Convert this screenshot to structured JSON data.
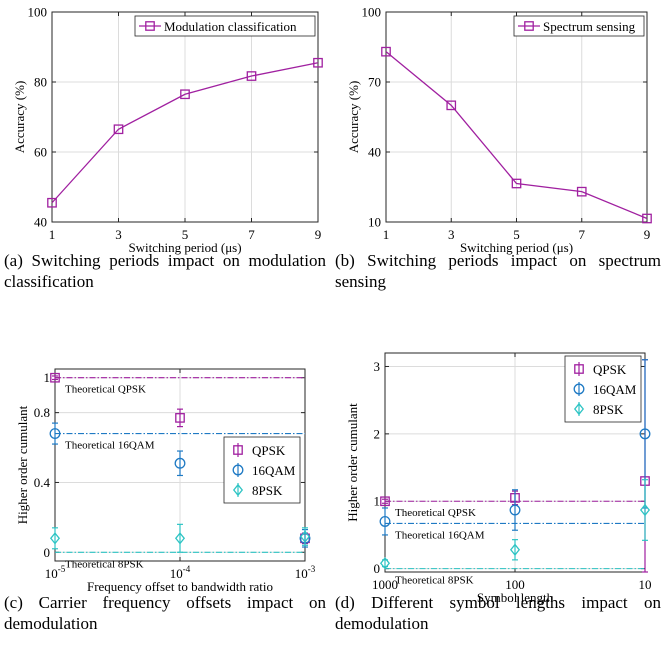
{
  "chart_data": [
    {
      "id": "a",
      "type": "line",
      "caption": "(a) Switching periods impact on modulation classification",
      "xlabel": "Switching period (μs)",
      "ylabel": "Accuracy (%)",
      "x_ticks": [
        "1",
        "3",
        "5",
        "7",
        "9"
      ],
      "y_ticks": [
        "40",
        "60",
        "80",
        "100"
      ],
      "xlim": [
        1,
        9
      ],
      "ylim": [
        40,
        100
      ],
      "grid": true,
      "legend_position": "top-right",
      "series": [
        {
          "name": "Modulation  classification",
          "color": "#a020a0",
          "marker": "square",
          "x": [
            1,
            3,
            5,
            7,
            9
          ],
          "y": [
            45.5,
            66.5,
            76.5,
            81.7,
            85.5
          ]
        }
      ]
    },
    {
      "id": "b",
      "type": "line",
      "caption": "(b) Switching periods impact on spectrum sensing",
      "xlabel": "Switching period (μs)",
      "ylabel": "Accuracy (%)",
      "x_ticks": [
        "1",
        "3",
        "5",
        "7",
        "9"
      ],
      "y_ticks": [
        "10",
        "40",
        "70",
        "100"
      ],
      "xlim": [
        1,
        9
      ],
      "ylim": [
        10,
        100
      ],
      "grid": true,
      "legend_position": "top-right",
      "series": [
        {
          "name": "Spectrum sensing",
          "color": "#a020a0",
          "marker": "square",
          "x": [
            1,
            3,
            5,
            7,
            9
          ],
          "y": [
            83,
            60,
            26.5,
            23,
            11.5
          ]
        }
      ]
    },
    {
      "id": "c",
      "type": "scatter",
      "caption": "(c) Carrier frequency offsets impact on demodulation",
      "xlabel": "Frequency offset to bandwidth ratio",
      "ylabel": "Higher order cumulant",
      "x_ticks": [
        {
          "base": "10",
          "exp": "-5"
        },
        {
          "base": "10",
          "exp": "-4"
        },
        {
          "base": "10",
          "exp": "-3"
        }
      ],
      "y_ticks": [
        "0",
        "0.4",
        "0.8",
        "1"
      ],
      "x_scale": "log",
      "xlim": [
        1e-05,
        0.001
      ],
      "ylim": [
        -0.05,
        1.05
      ],
      "grid": true,
      "legend_position": "center-right",
      "reference_lines": [
        {
          "label": "Theoretical QPSK",
          "y": 1,
          "color": "#a020a0"
        },
        {
          "label": "Theoretical 16QAM",
          "y": 0.68,
          "color": "#1f7ac4"
        },
        {
          "label": "Theoretical 8PSK",
          "y": 0,
          "color": "#2ec4c4"
        }
      ],
      "series": [
        {
          "name": "QPSK",
          "color": "#a020a0",
          "marker": "square",
          "x": [
            1e-05,
            0.0001,
            0.001
          ],
          "y": [
            1.0,
            0.77,
            0.08
          ],
          "err": [
            0.01,
            0.05,
            0.03
          ]
        },
        {
          "name": "16QAM",
          "color": "#1f7ac4",
          "marker": "circle",
          "x": [
            1e-05,
            0.0001,
            0.001
          ],
          "y": [
            0.68,
            0.51,
            0.08
          ],
          "err": [
            0.06,
            0.07,
            0.05
          ]
        },
        {
          "name": "8PSK",
          "color": "#2ec4c4",
          "marker": "diamond",
          "x": [
            1e-05,
            0.0001,
            0.001
          ],
          "y": [
            0.08,
            0.08,
            0.09
          ],
          "err": [
            0.06,
            0.08,
            0.05
          ]
        }
      ]
    },
    {
      "id": "d",
      "type": "scatter",
      "caption": "(d) Different symbol lengths impact on demodulation",
      "xlabel": "Symbol length",
      "ylabel": "Higher order cumulant",
      "x_ticks": [
        "1000",
        "100",
        "10"
      ],
      "y_ticks": [
        "0",
        "1",
        "2",
        "3"
      ],
      "x_scale": "log-reversed",
      "xlim": [
        1000,
        10
      ],
      "ylim": [
        -0.05,
        3.2
      ],
      "grid": true,
      "legend_position": "top-right",
      "reference_lines": [
        {
          "label": "Theoretical QPSK",
          "y": 1,
          "color": "#a020a0"
        },
        {
          "label": "Theoretical 16QAM",
          "y": 0.67,
          "color": "#1f7ac4"
        },
        {
          "label": "Theoretical 8PSK",
          "y": 0,
          "color": "#2ec4c4"
        }
      ],
      "series": [
        {
          "name": "QPSK",
          "color": "#a020a0",
          "marker": "square",
          "x": [
            1000,
            100,
            10
          ],
          "y": [
            1.0,
            1.05,
            1.3
          ],
          "err": [
            0.03,
            0.1,
            1.8
          ]
        },
        {
          "name": "16QAM",
          "color": "#1f7ac4",
          "marker": "circle",
          "x": [
            1000,
            100,
            10
          ],
          "y": [
            0.7,
            0.87,
            2.0
          ],
          "err": [
            0.2,
            0.3,
            1.1
          ]
        },
        {
          "name": "8PSK",
          "color": "#2ec4c4",
          "marker": "diamond",
          "x": [
            1000,
            100,
            10
          ],
          "y": [
            0.08,
            0.28,
            0.87
          ],
          "err": [
            0.05,
            0.15,
            0.45
          ]
        }
      ]
    }
  ]
}
